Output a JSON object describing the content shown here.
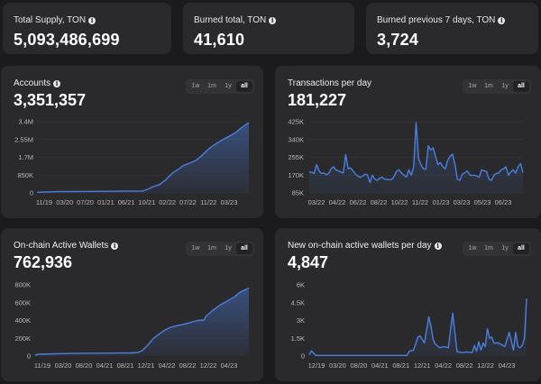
{
  "stats": [
    {
      "label": "Total Supply, TON",
      "value": "5,093,486,699",
      "info": true
    },
    {
      "label": "Burned total, TON",
      "value": "41,610",
      "info": true
    },
    {
      "label": "Burned previous 7 days, TON",
      "value": "3,724",
      "info": true
    }
  ],
  "range_options": [
    "1w",
    "1m",
    "1y",
    "all"
  ],
  "range_selected": "all",
  "accent_color": "#4a7fe0",
  "chart_data": [
    {
      "id": "accounts",
      "type": "area",
      "title": "Accounts",
      "info": true,
      "current_value": "3,351,357",
      "ylim": [
        0,
        3400000
      ],
      "yticks": [
        0,
        850000,
        1700000,
        2550000,
        3400000
      ],
      "ytick_labels": [
        "0",
        "850K",
        "1.7M",
        "2.55M",
        "3.4M"
      ],
      "xtick_labels": [
        "11/19",
        "03/20",
        "07/20",
        "01/21",
        "06/21",
        "10/21",
        "02/22",
        "07/22",
        "11/22",
        "03/23"
      ],
      "x": [
        0,
        0.1,
        0.2,
        0.3,
        0.4,
        0.5,
        0.52,
        0.55,
        0.58,
        0.61,
        0.64,
        0.67,
        0.69,
        0.72,
        0.75,
        0.78,
        0.8,
        0.82,
        0.85,
        0.88,
        0.91,
        0.94,
        0.97,
        1.0
      ],
      "values": [
        30000,
        60000,
        70000,
        75000,
        80000,
        90000,
        170000,
        300000,
        400000,
        650000,
        950000,
        1150000,
        1300000,
        1420000,
        1550000,
        1800000,
        2000000,
        2180000,
        2380000,
        2560000,
        2720000,
        2900000,
        3150000,
        3351357
      ],
      "grid": true
    },
    {
      "id": "transactions",
      "type": "area",
      "title": "Transactions per day",
      "info": false,
      "current_value": "181,227",
      "ylim": [
        85000,
        425000
      ],
      "yticks": [
        85000,
        170000,
        255000,
        340000,
        425000
      ],
      "ytick_labels": [
        "85K",
        "170K",
        "255K",
        "340K",
        "425K"
      ],
      "xtick_labels": [
        "03/22",
        "04/22",
        "06/22",
        "08/22",
        "10/22",
        "11/22",
        "01/23",
        "03/23",
        "05/23",
        "06/23"
      ],
      "values": [
        185000,
        183000,
        178000,
        220000,
        190000,
        178000,
        180000,
        172000,
        178000,
        200000,
        210000,
        195000,
        190000,
        185000,
        180000,
        268000,
        200000,
        205000,
        190000,
        175000,
        165000,
        160000,
        165000,
        175000,
        170000,
        135000,
        170000,
        150000,
        145000,
        155000,
        160000,
        150000,
        150000,
        148000,
        150000,
        165000,
        190000,
        195000,
        180000,
        170000,
        160000,
        195000,
        170000,
        210000,
        420000,
        250000,
        220000,
        200000,
        198000,
        310000,
        290000,
        300000,
        260000,
        220000,
        230000,
        210000,
        200000,
        240000,
        260000,
        270000,
        220000,
        150000,
        145000,
        175000,
        180000,
        190000,
        172000,
        168000,
        170000,
        165000,
        160000,
        195000,
        190000,
        188000,
        150000,
        145000,
        170000,
        178000,
        180000,
        195000,
        200000,
        210000,
        170000,
        185000,
        195000,
        180000,
        210000,
        225000,
        181227
      ],
      "grid": true
    },
    {
      "id": "active-wallets",
      "type": "area",
      "title": "On-chain Active Wallets",
      "info": true,
      "current_value": "762,936",
      "ylim": [
        0,
        800000
      ],
      "yticks": [
        0,
        200000,
        400000,
        600000,
        800000
      ],
      "ytick_labels": [
        "0",
        "200K",
        "400K",
        "600K",
        "800K"
      ],
      "xtick_labels": [
        "11/19",
        "03/20",
        "08/20",
        "04/21",
        "08/21",
        "12/21",
        "04/22",
        "08/22",
        "12/22",
        "04/23"
      ],
      "x": [
        0,
        0.01,
        0.15,
        0.3,
        0.45,
        0.48,
        0.5,
        0.53,
        0.55,
        0.57,
        0.6,
        0.63,
        0.67,
        0.7,
        0.73,
        0.76,
        0.79,
        0.8,
        0.82,
        0.84,
        0.87,
        0.9,
        0.93,
        0.96,
        1.0
      ],
      "values": [
        5000,
        20000,
        28000,
        32000,
        35000,
        40000,
        60000,
        130000,
        190000,
        230000,
        280000,
        320000,
        345000,
        360000,
        380000,
        400000,
        405000,
        450000,
        490000,
        530000,
        580000,
        620000,
        660000,
        720000,
        762936
      ],
      "grid": false
    },
    {
      "id": "new-wallets",
      "type": "line",
      "title": "New on-chain active wallets per day",
      "info": true,
      "current_value": "4,847",
      "ylim": [
        0,
        6000
      ],
      "yticks": [
        0,
        1500,
        3000,
        4500,
        6000
      ],
      "ytick_labels": [
        "0",
        "1.5K",
        "3K",
        "4.5K",
        "6K"
      ],
      "xtick_labels": [
        "12/19",
        "03/20",
        "08/20",
        "04/21",
        "08/21",
        "12/21",
        "04/22",
        "08/22",
        "12/22",
        "04/23"
      ],
      "x": [
        0,
        0.01,
        0.02,
        0.03,
        0.1,
        0.3,
        0.45,
        0.46,
        0.48,
        0.5,
        0.51,
        0.53,
        0.55,
        0.56,
        0.57,
        0.58,
        0.6,
        0.62,
        0.64,
        0.66,
        0.68,
        0.69,
        0.7,
        0.71,
        0.72,
        0.75,
        0.76,
        0.77,
        0.78,
        0.79,
        0.8,
        0.81,
        0.82,
        0.83,
        0.84,
        0.85,
        0.86,
        0.87,
        0.88,
        0.9,
        0.92,
        0.94,
        0.95,
        0.96,
        0.97,
        0.98,
        0.99,
        1.0
      ],
      "values": [
        100,
        450,
        250,
        50,
        50,
        50,
        50,
        400,
        500,
        1600,
        1700,
        1100,
        3300,
        2500,
        1400,
        1000,
        700,
        800,
        700,
        3600,
        350,
        350,
        300,
        300,
        350,
        300,
        900,
        400,
        1200,
        500,
        1100,
        800,
        2300,
        1500,
        1600,
        1100,
        1100,
        1100,
        1000,
        800,
        2000,
        500,
        2000,
        800,
        700,
        900,
        1500,
        4847
      ],
      "grid": false
    }
  ]
}
